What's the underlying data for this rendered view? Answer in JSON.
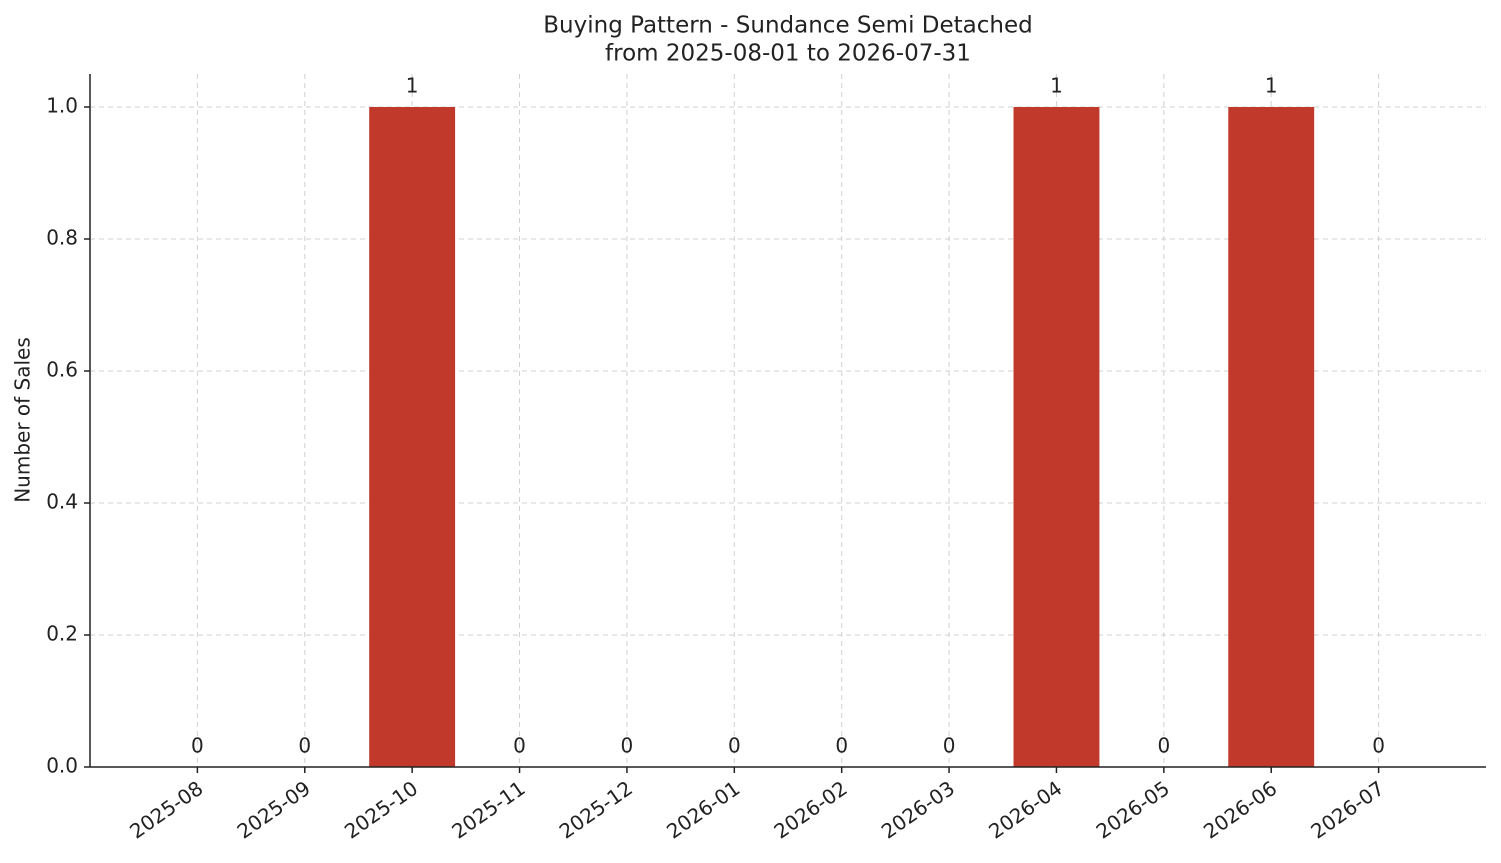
{
  "chart_data": {
    "type": "bar",
    "title": "Buying Pattern - Sundance Semi Detached",
    "subtitle": "from 2025-08-01 to 2026-07-31",
    "y_label": "Number of Sales",
    "categories": [
      "2025-08",
      "2025-09",
      "2025-10",
      "2025-11",
      "2025-12",
      "2026-01",
      "2026-02",
      "2026-03",
      "2026-04",
      "2026-05",
      "2026-06",
      "2026-07"
    ],
    "values": [
      0,
      0,
      1,
      0,
      0,
      0,
      0,
      0,
      1,
      0,
      1,
      0
    ],
    "color": "#c0392b",
    "ylim": [
      0,
      1.05
    ],
    "yticks": [
      {
        "value": 0,
        "label": "0.0"
      },
      0.2,
      0.4,
      0.6,
      0.8,
      {
        "value": 1,
        "label": "1.0"
      }
    ],
    "grid": true
  }
}
